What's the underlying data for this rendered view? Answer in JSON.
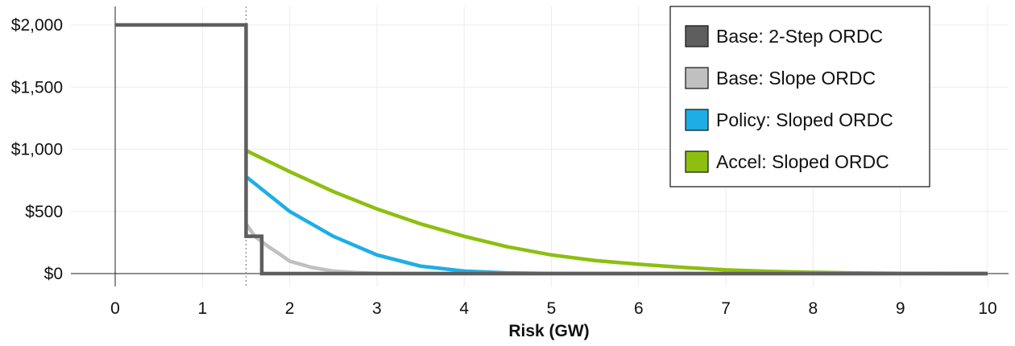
{
  "chart_data": {
    "type": "line",
    "title": "",
    "xlabel": "Risk (GW)",
    "ylabel": "",
    "xlim": [
      -0.5,
      10.3
    ],
    "ylim": [
      -150,
      2100
    ],
    "x_ticks": [
      0,
      1,
      2,
      3,
      4,
      5,
      6,
      7,
      8,
      9,
      10
    ],
    "x_tick_labels": [
      "0",
      "1",
      "2",
      "3",
      "4",
      "5",
      "6",
      "7",
      "8",
      "9",
      "10"
    ],
    "y_ticks": [
      0,
      500,
      1000,
      1500,
      2000
    ],
    "y_tick_labels": [
      "$0",
      "$500",
      "$1,000",
      "$1,500",
      "$2,000"
    ],
    "grid": true,
    "reference_line_x": 1.5,
    "legend_position": "top-right",
    "series": [
      {
        "name": "Accel: Sloped ORDC",
        "color": "#8cbf0f",
        "x": [
          1.5,
          1.5,
          2.0,
          2.5,
          3.0,
          3.5,
          4.0,
          4.5,
          5.0,
          5.5,
          6.0,
          6.5,
          7.0,
          7.5,
          8.0,
          8.5,
          9.0,
          9.5,
          10.0
        ],
        "y": [
          null,
          990,
          820,
          660,
          520,
          400,
          300,
          215,
          150,
          105,
          75,
          50,
          30,
          18,
          10,
          5,
          2,
          1,
          0
        ]
      },
      {
        "name": "Policy: Sloped ORDC",
        "color": "#1eaee6",
        "x": [
          1.5,
          1.5,
          1.75,
          2.0,
          2.25,
          2.5,
          3.0,
          3.5,
          4.0,
          4.5,
          5.0,
          6.0,
          7.0,
          8.0,
          9.0,
          10.0
        ],
        "y": [
          null,
          780,
          640,
          500,
          400,
          300,
          150,
          60,
          20,
          5,
          1,
          0,
          0,
          0,
          0,
          0
        ]
      },
      {
        "name": "Base: Slope ORDC",
        "color": "#c0c0c0",
        "x": [
          1.5,
          1.5,
          1.6,
          1.75,
          1.9,
          2.0,
          2.25,
          2.5,
          2.75,
          3.0,
          3.5,
          4.0,
          5.0,
          6.0,
          7.0,
          8.0,
          9.0,
          10.0
        ],
        "y": [
          null,
          400,
          300,
          220,
          150,
          100,
          50,
          20,
          8,
          2,
          0,
          0,
          0,
          0,
          0,
          0,
          0,
          0
        ]
      },
      {
        "name": "Base: 2-Step ORDC",
        "color": "#5e5e5e",
        "x": [
          0,
          1.5,
          1.5,
          1.68,
          1.68,
          10.0
        ],
        "y": [
          2000,
          2000,
          300,
          300,
          0,
          0
        ]
      }
    ],
    "legend_order": [
      "Base: 2-Step ORDC",
      "Base: Slope ORDC",
      "Policy: Sloped ORDC",
      "Accel: Sloped ORDC"
    ]
  }
}
